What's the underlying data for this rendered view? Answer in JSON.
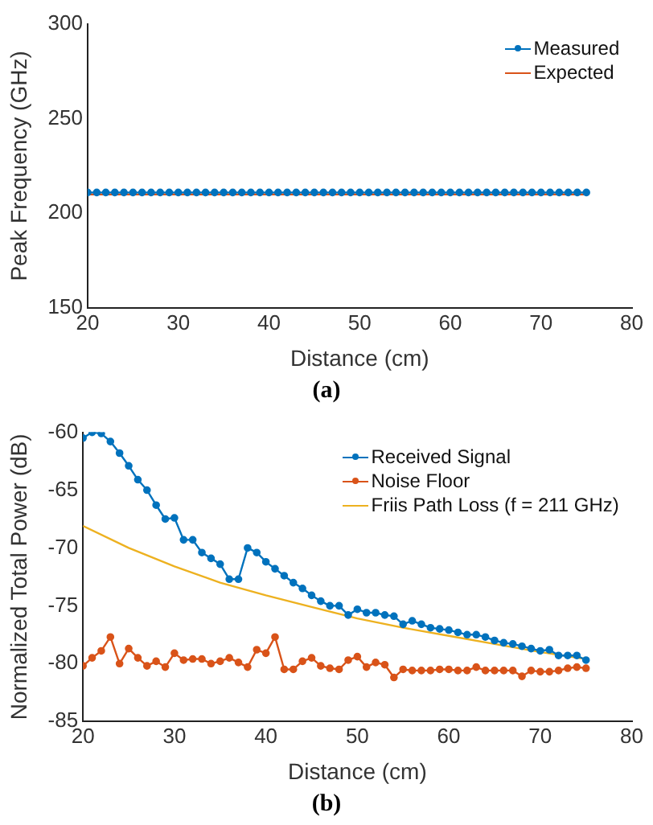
{
  "chart_data": [
    {
      "type": "line",
      "xlabel": "Distance (cm)",
      "ylabel": "Peak Frequency (GHz)",
      "annotations": [
        "(a)"
      ],
      "x": [
        20,
        21,
        22,
        23,
        24,
        25,
        26,
        27,
        28,
        29,
        30,
        31,
        32,
        33,
        34,
        35,
        36,
        37,
        38,
        39,
        40,
        41,
        42,
        43,
        44,
        45,
        46,
        47,
        48,
        49,
        50,
        51,
        52,
        53,
        54,
        55,
        56,
        57,
        58,
        59,
        60,
        61,
        62,
        63,
        64,
        65,
        66,
        67,
        68,
        69,
        70,
        71,
        72,
        73,
        74,
        75
      ],
      "series": [
        {
          "name": "Measured",
          "color": "#0072bd",
          "marker": "circle",
          "values": [
            211,
            211,
            211,
            211,
            211,
            211,
            211,
            211,
            211,
            211,
            211,
            211,
            211,
            211,
            211,
            211,
            211,
            211,
            211,
            211,
            211,
            211,
            211,
            211,
            211,
            211,
            211,
            211,
            211,
            211,
            211,
            211,
            211,
            211,
            211,
            211,
            211,
            211,
            211,
            211,
            211,
            211,
            211,
            211,
            211,
            211,
            211,
            211,
            211,
            211,
            211,
            211,
            211,
            211,
            211,
            211
          ]
        },
        {
          "name": "Expected",
          "color": "#d95319",
          "marker": "none",
          "x": [
            20,
            75
          ],
          "values": [
            210,
            210
          ]
        }
      ],
      "xlim": [
        20,
        80
      ],
      "xticks": [
        20,
        30,
        40,
        50,
        60,
        70,
        80
      ],
      "ylim": [
        150,
        300
      ],
      "yticks": [
        150,
        200,
        250,
        300
      ],
      "grid": false,
      "legend": "top right",
      "line_style": "solid"
    },
    {
      "type": "line",
      "xlabel": "Distance (cm)",
      "ylabel": "Normalized Total Power (dB)",
      "annotations": [
        "(b)"
      ],
      "x": [
        20,
        21,
        22,
        23,
        24,
        25,
        26,
        27,
        28,
        29,
        30,
        31,
        32,
        33,
        34,
        35,
        36,
        37,
        38,
        39,
        40,
        41,
        42,
        43,
        44,
        45,
        46,
        47,
        48,
        49,
        50,
        51,
        52,
        53,
        54,
        55,
        56,
        57,
        58,
        59,
        60,
        61,
        62,
        63,
        64,
        65,
        66,
        67,
        68,
        69,
        70,
        71,
        72,
        73,
        74,
        75
      ],
      "series": [
        {
          "name": "Received Signal",
          "color": "#0072bd",
          "marker": "circle",
          "values": [
            -60.5,
            -60.0,
            -60.1,
            -60.8,
            -61.8,
            -62.9,
            -64.1,
            -65.0,
            -66.3,
            -67.5,
            -67.4,
            -69.3,
            -69.3,
            -70.4,
            -70.9,
            -71.4,
            -72.7,
            -72.7,
            -70.0,
            -70.4,
            -71.2,
            -71.8,
            -72.4,
            -73.0,
            -73.5,
            -74.1,
            -74.6,
            -75.0,
            -75.0,
            -75.8,
            -75.3,
            -75.6,
            -75.6,
            -75.8,
            -75.9,
            -76.6,
            -76.3,
            -76.6,
            -76.9,
            -77.0,
            -77.1,
            -77.3,
            -77.5,
            -77.5,
            -77.7,
            -78.0,
            -78.2,
            -78.3,
            -78.5,
            -78.7,
            -78.9,
            -78.8,
            -79.3,
            -79.3,
            -79.3,
            -79.7
          ]
        },
        {
          "name": "Noise Floor",
          "color": "#d95319",
          "marker": "circle",
          "values": [
            -80.2,
            -79.5,
            -78.9,
            -77.7,
            -80.0,
            -78.7,
            -79.5,
            -80.2,
            -79.8,
            -80.3,
            -79.1,
            -79.7,
            -79.6,
            -79.6,
            -80.0,
            -79.8,
            -79.5,
            -79.9,
            -80.3,
            -78.8,
            -79.1,
            -77.7,
            -80.5,
            -80.5,
            -79.8,
            -79.5,
            -80.2,
            -80.4,
            -80.5,
            -79.7,
            -79.4,
            -80.3,
            -79.9,
            -80.1,
            -81.2,
            -80.5,
            -80.6,
            -80.6,
            -80.6,
            -80.5,
            -80.5,
            -80.6,
            -80.6,
            -80.3,
            -80.6,
            -80.6,
            -80.6,
            -80.6,
            -81.1,
            -80.6,
            -80.7,
            -80.7,
            -80.6,
            -80.4,
            -80.3,
            -80.4
          ]
        },
        {
          "name": "Friis Path Loss (f = 211 GHz)",
          "color": "#edb120",
          "marker": "none",
          "x": [
            20,
            25,
            30,
            35,
            40,
            45,
            50,
            55,
            60,
            65,
            70,
            75
          ],
          "values": [
            -68.1,
            -70.0,
            -71.6,
            -73.0,
            -74.1,
            -75.1,
            -76.1,
            -76.9,
            -77.6,
            -78.3,
            -79.0,
            -79.6
          ]
        }
      ],
      "xlim": [
        20,
        80
      ],
      "xticks": [
        20,
        30,
        40,
        50,
        60,
        70,
        80
      ],
      "ylim": [
        -85,
        -60
      ],
      "yticks": [
        -85,
        -80,
        -75,
        -70,
        -65,
        -60
      ],
      "grid": false,
      "legend": "top right",
      "line_style": "solid"
    }
  ]
}
